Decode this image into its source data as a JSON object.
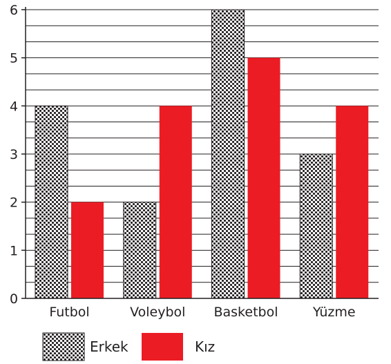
{
  "chart_data": {
    "type": "bar",
    "categories": [
      "Futbol",
      "Voleybol",
      "Basketbol",
      "Yüzme"
    ],
    "series": [
      {
        "name": "Erkek",
        "values": [
          4,
          2,
          6,
          3
        ],
        "pattern": "dots"
      },
      {
        "name": "Kız",
        "values": [
          2,
          4,
          5,
          4
        ],
        "color": "#ec1c24"
      }
    ],
    "ylim": [
      0,
      6
    ],
    "yticks": [
      0,
      1,
      2,
      3,
      4,
      5,
      6
    ],
    "grid": true,
    "grid_step": 0.333,
    "legend": "bottom-left",
    "title": "",
    "xlabel": "",
    "ylabel": ""
  }
}
